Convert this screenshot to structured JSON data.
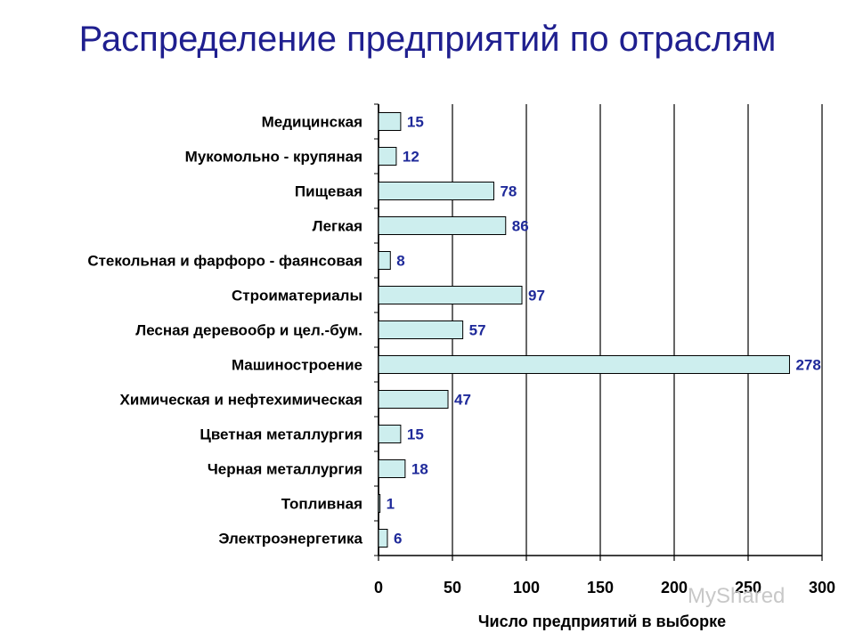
{
  "slide": {
    "title": "Распределение предприятий по отраслям"
  },
  "watermark": {
    "text": "MyShared"
  },
  "chart_data": {
    "type": "bar",
    "orientation": "horizontal",
    "categories": [
      "Медицинская",
      "Мукомольно - крупяная",
      "Пищевая",
      "Легкая",
      "Стекольная и фарфоро - фаянсовая",
      "Строиматериалы",
      "Лесная деревообр и цел.-бум.",
      "Машиностроение",
      "Химическая и нефтехимическая",
      "Цветная металлургия",
      "Черная металлургия",
      "Топливная",
      "Электроэнергетика"
    ],
    "values": [
      15,
      12,
      78,
      86,
      8,
      97,
      57,
      278,
      47,
      15,
      18,
      1,
      6
    ],
    "xlabel": "Число предприятий в выборке",
    "ylabel": "",
    "xlim": [
      0,
      300
    ],
    "xticks": [
      0,
      50,
      100,
      150,
      200,
      250,
      300
    ],
    "grid": "vertical",
    "legend": "none",
    "data_labels": true,
    "colors": {
      "bar_fill": "#cdeeee",
      "bar_stroke": "#000000",
      "value_label": "#1f2a9a",
      "grid": "#000000"
    }
  }
}
